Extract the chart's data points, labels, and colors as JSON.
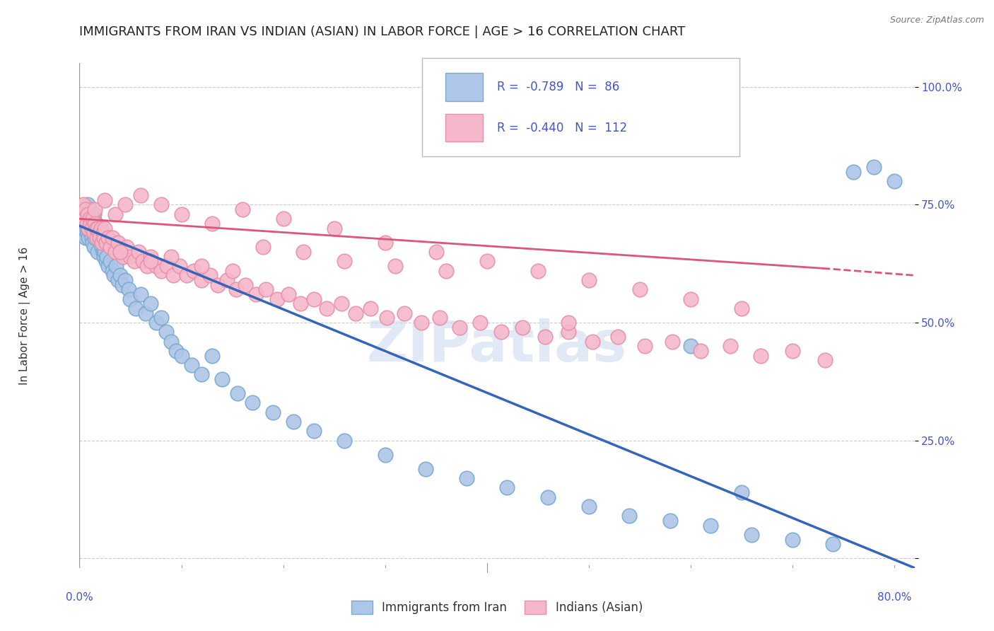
{
  "title": "IMMIGRANTS FROM IRAN VS INDIAN (ASIAN) IN LABOR FORCE | AGE > 16 CORRELATION CHART",
  "source": "Source: ZipAtlas.com",
  "ylabel": "In Labor Force | Age > 16",
  "iran_R": "-0.789",
  "iran_N": "86",
  "indian_R": "-0.440",
  "indian_N": "112",
  "iran_color": "#aec6e8",
  "iran_edge_color": "#7aaad0",
  "iran_line_color": "#3366bb",
  "indian_color": "#f5b8cb",
  "indian_edge_color": "#e890aa",
  "indian_line_color": "#dd5577",
  "background_color": "#ffffff",
  "grid_color": "#cccccc",
  "axis_color": "#4455cc",
  "title_color": "#222222",
  "title_fontsize": 13,
  "label_fontsize": 11,
  "tick_fontsize": 11,
  "legend_fontsize": 12,
  "watermark_text": "ZIPatlas",
  "watermark_color": "#c8d8ee",
  "xlim": [
    0.0,
    0.82
  ],
  "ylim": [
    -0.02,
    1.05
  ],
  "ytick_positions": [
    0.0,
    0.25,
    0.5,
    0.75,
    1.0
  ],
  "ytick_labels": [
    "",
    "25.0%",
    "50.0%",
    "75.0%",
    "100.0%"
  ],
  "iran_scatter_x": [
    0.002,
    0.003,
    0.004,
    0.004,
    0.005,
    0.005,
    0.006,
    0.006,
    0.007,
    0.007,
    0.008,
    0.008,
    0.009,
    0.009,
    0.01,
    0.01,
    0.011,
    0.011,
    0.012,
    0.012,
    0.013,
    0.013,
    0.014,
    0.014,
    0.015,
    0.015,
    0.016,
    0.017,
    0.018,
    0.019,
    0.02,
    0.021,
    0.022,
    0.023,
    0.024,
    0.025,
    0.026,
    0.027,
    0.028,
    0.03,
    0.032,
    0.034,
    0.036,
    0.038,
    0.04,
    0.042,
    0.045,
    0.048,
    0.05,
    0.055,
    0.06,
    0.065,
    0.07,
    0.075,
    0.08,
    0.085,
    0.09,
    0.095,
    0.1,
    0.11,
    0.12,
    0.13,
    0.14,
    0.155,
    0.17,
    0.19,
    0.21,
    0.23,
    0.26,
    0.3,
    0.34,
    0.38,
    0.42,
    0.46,
    0.5,
    0.54,
    0.58,
    0.62,
    0.66,
    0.7,
    0.74,
    0.76,
    0.78,
    0.8,
    0.6,
    0.65
  ],
  "iran_scatter_y": [
    0.7,
    0.72,
    0.73,
    0.69,
    0.72,
    0.74,
    0.71,
    0.68,
    0.73,
    0.7,
    0.75,
    0.69,
    0.72,
    0.68,
    0.74,
    0.71,
    0.73,
    0.69,
    0.72,
    0.68,
    0.7,
    0.67,
    0.73,
    0.66,
    0.7,
    0.68,
    0.71,
    0.69,
    0.65,
    0.7,
    0.68,
    0.67,
    0.66,
    0.65,
    0.64,
    0.65,
    0.63,
    0.64,
    0.62,
    0.63,
    0.61,
    0.6,
    0.62,
    0.59,
    0.6,
    0.58,
    0.59,
    0.57,
    0.55,
    0.53,
    0.56,
    0.52,
    0.54,
    0.5,
    0.51,
    0.48,
    0.46,
    0.44,
    0.43,
    0.41,
    0.39,
    0.43,
    0.38,
    0.35,
    0.33,
    0.31,
    0.29,
    0.27,
    0.25,
    0.22,
    0.19,
    0.17,
    0.15,
    0.13,
    0.11,
    0.09,
    0.08,
    0.07,
    0.05,
    0.04,
    0.03,
    0.82,
    0.83,
    0.8,
    0.45,
    0.14
  ],
  "indian_scatter_x": [
    0.002,
    0.003,
    0.004,
    0.005,
    0.006,
    0.007,
    0.008,
    0.009,
    0.01,
    0.011,
    0.012,
    0.013,
    0.014,
    0.015,
    0.016,
    0.017,
    0.018,
    0.019,
    0.02,
    0.021,
    0.022,
    0.023,
    0.024,
    0.025,
    0.026,
    0.028,
    0.03,
    0.032,
    0.035,
    0.038,
    0.04,
    0.043,
    0.046,
    0.05,
    0.054,
    0.058,
    0.062,
    0.066,
    0.07,
    0.075,
    0.08,
    0.086,
    0.092,
    0.098,
    0.105,
    0.112,
    0.12,
    0.128,
    0.136,
    0.145,
    0.154,
    0.163,
    0.173,
    0.183,
    0.194,
    0.205,
    0.217,
    0.23,
    0.243,
    0.257,
    0.271,
    0.286,
    0.302,
    0.319,
    0.336,
    0.354,
    0.373,
    0.393,
    0.414,
    0.435,
    0.457,
    0.48,
    0.504,
    0.529,
    0.555,
    0.582,
    0.61,
    0.639,
    0.669,
    0.7,
    0.732,
    0.015,
    0.025,
    0.035,
    0.045,
    0.06,
    0.08,
    0.1,
    0.13,
    0.16,
    0.2,
    0.25,
    0.3,
    0.35,
    0.4,
    0.45,
    0.5,
    0.55,
    0.6,
    0.65,
    0.04,
    0.07,
    0.09,
    0.12,
    0.15,
    0.18,
    0.22,
    0.26,
    0.31,
    0.36,
    0.42,
    0.48
  ],
  "indian_scatter_y": [
    0.74,
    0.73,
    0.75,
    0.72,
    0.74,
    0.71,
    0.73,
    0.7,
    0.72,
    0.71,
    0.7,
    0.72,
    0.69,
    0.71,
    0.7,
    0.68,
    0.7,
    0.69,
    0.68,
    0.7,
    0.67,
    0.69,
    0.68,
    0.7,
    0.67,
    0.68,
    0.66,
    0.68,
    0.65,
    0.67,
    0.65,
    0.64,
    0.66,
    0.64,
    0.63,
    0.65,
    0.63,
    0.62,
    0.64,
    0.62,
    0.61,
    0.62,
    0.6,
    0.62,
    0.6,
    0.61,
    0.59,
    0.6,
    0.58,
    0.59,
    0.57,
    0.58,
    0.56,
    0.57,
    0.55,
    0.56,
    0.54,
    0.55,
    0.53,
    0.54,
    0.52,
    0.53,
    0.51,
    0.52,
    0.5,
    0.51,
    0.49,
    0.5,
    0.48,
    0.49,
    0.47,
    0.48,
    0.46,
    0.47,
    0.45,
    0.46,
    0.44,
    0.45,
    0.43,
    0.44,
    0.42,
    0.74,
    0.76,
    0.73,
    0.75,
    0.77,
    0.75,
    0.73,
    0.71,
    0.74,
    0.72,
    0.7,
    0.67,
    0.65,
    0.63,
    0.61,
    0.59,
    0.57,
    0.55,
    0.53,
    0.65,
    0.63,
    0.64,
    0.62,
    0.61,
    0.66,
    0.65,
    0.63,
    0.62,
    0.61,
    0.88,
    0.5
  ]
}
